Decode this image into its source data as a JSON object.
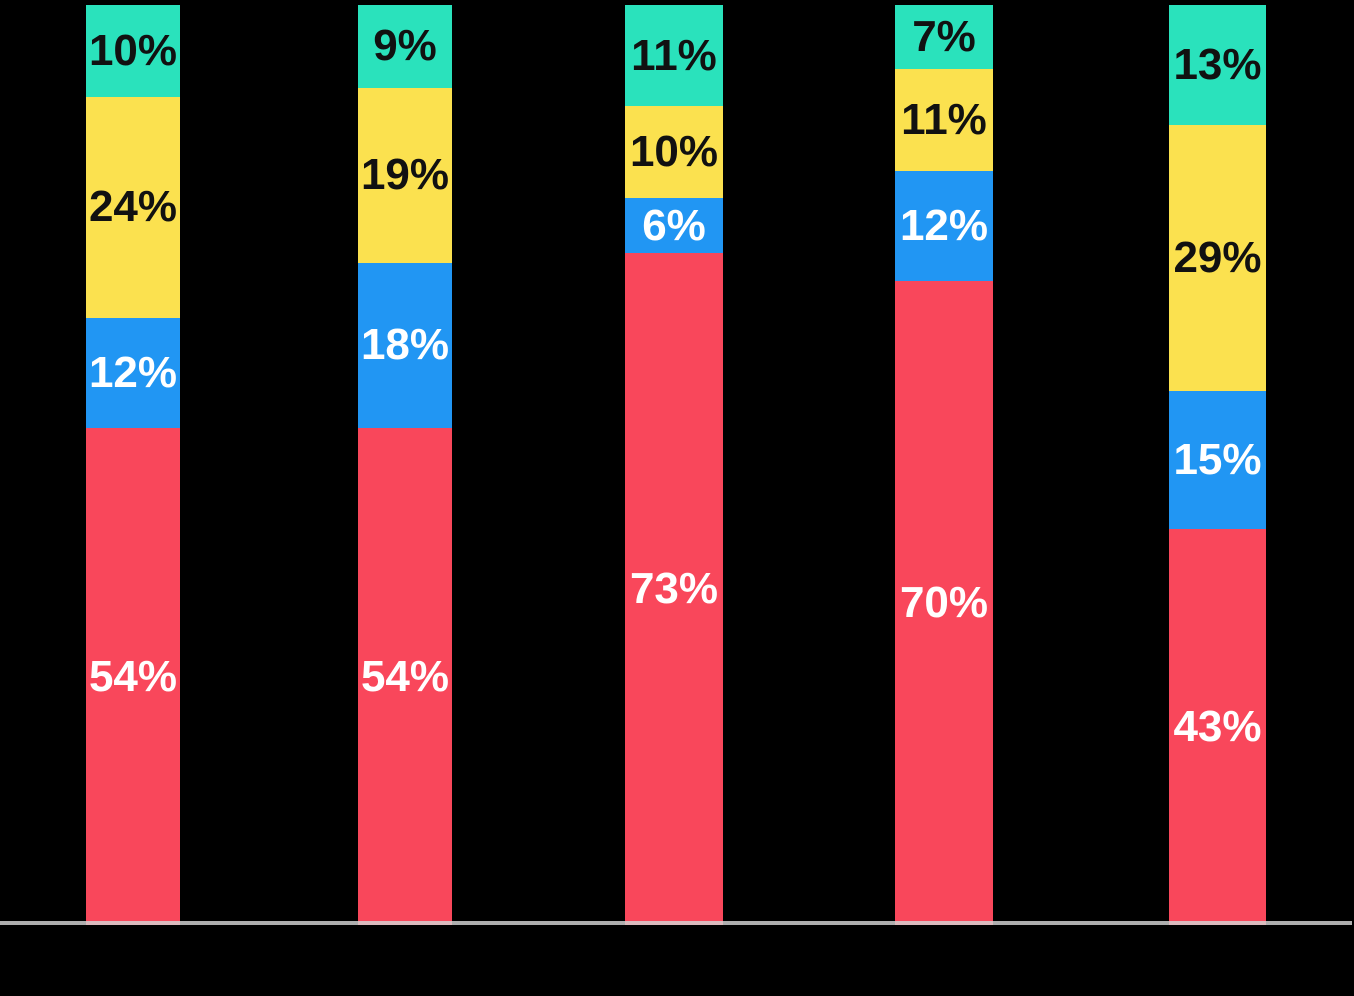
{
  "page": {
    "background_color": "#000000"
  },
  "axis": {
    "baseline_color": "#ABABAB"
  },
  "palette": {
    "red": "#F9475B",
    "blue": "#2196F3",
    "yellow": "#FBE14F",
    "teal": "#2AE2BC"
  },
  "label_colors": {
    "on_light_segment": "#111111",
    "on_dark_segment": "#FFFFFF"
  },
  "chart_data": {
    "type": "bar",
    "variant": "stacked-100-percent-column",
    "title": "",
    "legend": "none",
    "gridlines": "none",
    "axis_tick_labels": "none-visible",
    "ylim": [
      0,
      100
    ],
    "series": [
      {
        "name": "red",
        "color_key": "red",
        "values": [
          54,
          54,
          73,
          70,
          43
        ]
      },
      {
        "name": "blue",
        "color_key": "blue",
        "values": [
          12,
          18,
          6,
          12,
          15
        ]
      },
      {
        "name": "yellow",
        "color_key": "yellow",
        "values": [
          24,
          19,
          10,
          11,
          29
        ]
      },
      {
        "name": "teal",
        "color_key": "teal",
        "values": [
          10,
          9,
          11,
          7,
          13
        ]
      }
    ],
    "bars": [
      {
        "segments": [
          {
            "key": "teal",
            "value": 10,
            "label": "10%"
          },
          {
            "key": "yellow",
            "value": 24,
            "label": "24%"
          },
          {
            "key": "blue",
            "value": 12,
            "label": "12%"
          },
          {
            "key": "red",
            "value": 54,
            "label": "54%"
          }
        ]
      },
      {
        "segments": [
          {
            "key": "teal",
            "value": 9,
            "label": "9%"
          },
          {
            "key": "yellow",
            "value": 19,
            "label": "19%"
          },
          {
            "key": "blue",
            "value": 18,
            "label": "18%"
          },
          {
            "key": "red",
            "value": 54,
            "label": "54%"
          }
        ]
      },
      {
        "segments": [
          {
            "key": "teal",
            "value": 11,
            "label": "11%"
          },
          {
            "key": "yellow",
            "value": 10,
            "label": "10%"
          },
          {
            "key": "blue",
            "value": 6,
            "label": "6%"
          },
          {
            "key": "red",
            "value": 73,
            "label": "73%"
          }
        ]
      },
      {
        "segments": [
          {
            "key": "teal",
            "value": 7,
            "label": "7%"
          },
          {
            "key": "yellow",
            "value": 11,
            "label": "11%"
          },
          {
            "key": "blue",
            "value": 12,
            "label": "12%"
          },
          {
            "key": "red",
            "value": 70,
            "label": "70%"
          }
        ]
      },
      {
        "segments": [
          {
            "key": "teal",
            "value": 13,
            "label": "13%"
          },
          {
            "key": "yellow",
            "value": 29,
            "label": "29%"
          },
          {
            "key": "blue",
            "value": 15,
            "label": "15%"
          },
          {
            "key": "red",
            "value": 43,
            "label": "43%"
          }
        ]
      }
    ]
  }
}
